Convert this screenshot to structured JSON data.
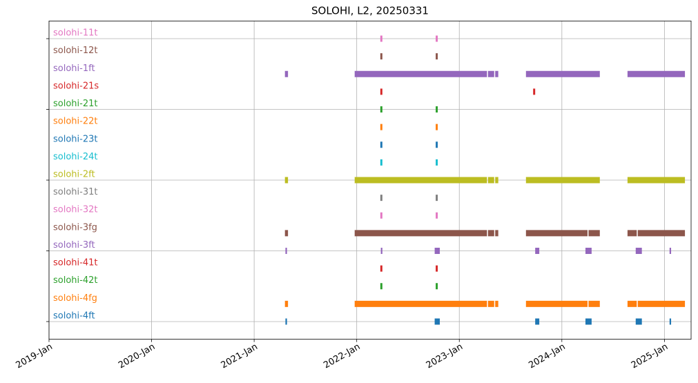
{
  "chart_data": {
    "type": "timeline",
    "title": "SOLOHI, L2, 20250331",
    "xlim": [
      2019,
      2025.26
    ],
    "ylim": [
      -1,
      17
    ],
    "xticks": [
      {
        "value": 2019,
        "label": "2019-Jan"
      },
      {
        "value": 2020,
        "label": "2020-Jan"
      },
      {
        "value": 2021,
        "label": "2021-Jan"
      },
      {
        "value": 2022,
        "label": "2022-Jan"
      },
      {
        "value": 2023,
        "label": "2023-Jan"
      },
      {
        "value": 2024,
        "label": "2024-Jan"
      },
      {
        "value": 2025,
        "label": "2025-Jan"
      }
    ],
    "yticks": [
      0,
      4,
      8,
      12,
      16
    ],
    "grid": true,
    "series": [
      {
        "name": "solohi-11t",
        "color": "#e377c2",
        "segments": [
          [
            2022.23,
            2022.25
          ],
          [
            2022.77,
            2022.79
          ]
        ]
      },
      {
        "name": "solohi-12t",
        "color": "#8c564b",
        "segments": [
          [
            2022.23,
            2022.25
          ],
          [
            2022.77,
            2022.79
          ]
        ]
      },
      {
        "name": "solohi-1ft",
        "color": "#9467bd",
        "segments": [
          [
            2021.3,
            2021.33
          ],
          [
            2021.98,
            2023.27
          ],
          [
            2023.28,
            2023.34
          ],
          [
            2023.35,
            2023.38
          ],
          [
            2023.65,
            2024.37
          ],
          [
            2024.64,
            2025.2
          ]
        ]
      },
      {
        "name": "solohi-21s",
        "color": "#d62728",
        "segments": [
          [
            2022.23,
            2022.25
          ],
          [
            2023.72,
            2023.74
          ]
        ]
      },
      {
        "name": "solohi-21t",
        "color": "#2ca02c",
        "segments": [
          [
            2022.23,
            2022.25
          ],
          [
            2022.77,
            2022.79
          ]
        ]
      },
      {
        "name": "solohi-22t",
        "color": "#ff7f0e",
        "segments": [
          [
            2022.23,
            2022.25
          ],
          [
            2022.77,
            2022.79
          ]
        ]
      },
      {
        "name": "solohi-23t",
        "color": "#1f77b4",
        "segments": [
          [
            2022.23,
            2022.25
          ],
          [
            2022.77,
            2022.79
          ]
        ]
      },
      {
        "name": "solohi-24t",
        "color": "#17becf",
        "segments": [
          [
            2022.23,
            2022.25
          ],
          [
            2022.77,
            2022.79
          ]
        ]
      },
      {
        "name": "solohi-2ft",
        "color": "#bcbd22",
        "segments": [
          [
            2021.3,
            2021.33
          ],
          [
            2021.98,
            2023.27
          ],
          [
            2023.28,
            2023.34
          ],
          [
            2023.35,
            2023.38
          ],
          [
            2023.65,
            2024.37
          ],
          [
            2024.64,
            2025.2
          ]
        ]
      },
      {
        "name": "solohi-31t",
        "color": "#7f7f7f",
        "segments": [
          [
            2022.23,
            2022.25
          ],
          [
            2022.77,
            2022.79
          ]
        ]
      },
      {
        "name": "solohi-32t",
        "color": "#e377c2",
        "segments": [
          [
            2022.23,
            2022.25
          ],
          [
            2022.77,
            2022.79
          ]
        ]
      },
      {
        "name": "solohi-3fg",
        "color": "#8c564b",
        "segments": [
          [
            2021.3,
            2021.33
          ],
          [
            2021.98,
            2023.27
          ],
          [
            2023.28,
            2023.34
          ],
          [
            2023.35,
            2023.38
          ],
          [
            2023.65,
            2024.25
          ],
          [
            2024.26,
            2024.37
          ],
          [
            2024.64,
            2024.73
          ],
          [
            2024.74,
            2025.2
          ]
        ]
      },
      {
        "name": "solohi-3ft",
        "color": "#9467bd",
        "segments": [
          [
            2021.305,
            2021.32
          ],
          [
            2022.235,
            2022.25
          ],
          [
            2022.76,
            2022.81
          ],
          [
            2023.74,
            2023.78
          ],
          [
            2024.23,
            2024.29
          ],
          [
            2024.72,
            2024.78
          ],
          [
            2025.05,
            2025.065
          ]
        ]
      },
      {
        "name": "solohi-41t",
        "color": "#d62728",
        "segments": [
          [
            2022.23,
            2022.25
          ],
          [
            2022.77,
            2022.79
          ]
        ]
      },
      {
        "name": "solohi-42t",
        "color": "#2ca02c",
        "segments": [
          [
            2022.23,
            2022.25
          ],
          [
            2022.77,
            2022.79
          ]
        ]
      },
      {
        "name": "solohi-4fg",
        "color": "#ff7f0e",
        "segments": [
          [
            2021.3,
            2021.33
          ],
          [
            2021.98,
            2023.27
          ],
          [
            2023.28,
            2023.34
          ],
          [
            2023.35,
            2023.38
          ],
          [
            2023.65,
            2024.25
          ],
          [
            2024.26,
            2024.37
          ],
          [
            2024.64,
            2024.73
          ],
          [
            2024.74,
            2025.2
          ]
        ]
      },
      {
        "name": "solohi-4ft",
        "color": "#1f77b4",
        "segments": [
          [
            2021.305,
            2021.32
          ],
          [
            2022.76,
            2022.81
          ],
          [
            2023.74,
            2023.78
          ],
          [
            2024.23,
            2024.29
          ],
          [
            2024.72,
            2024.78
          ],
          [
            2025.05,
            2025.065
          ]
        ]
      }
    ]
  }
}
